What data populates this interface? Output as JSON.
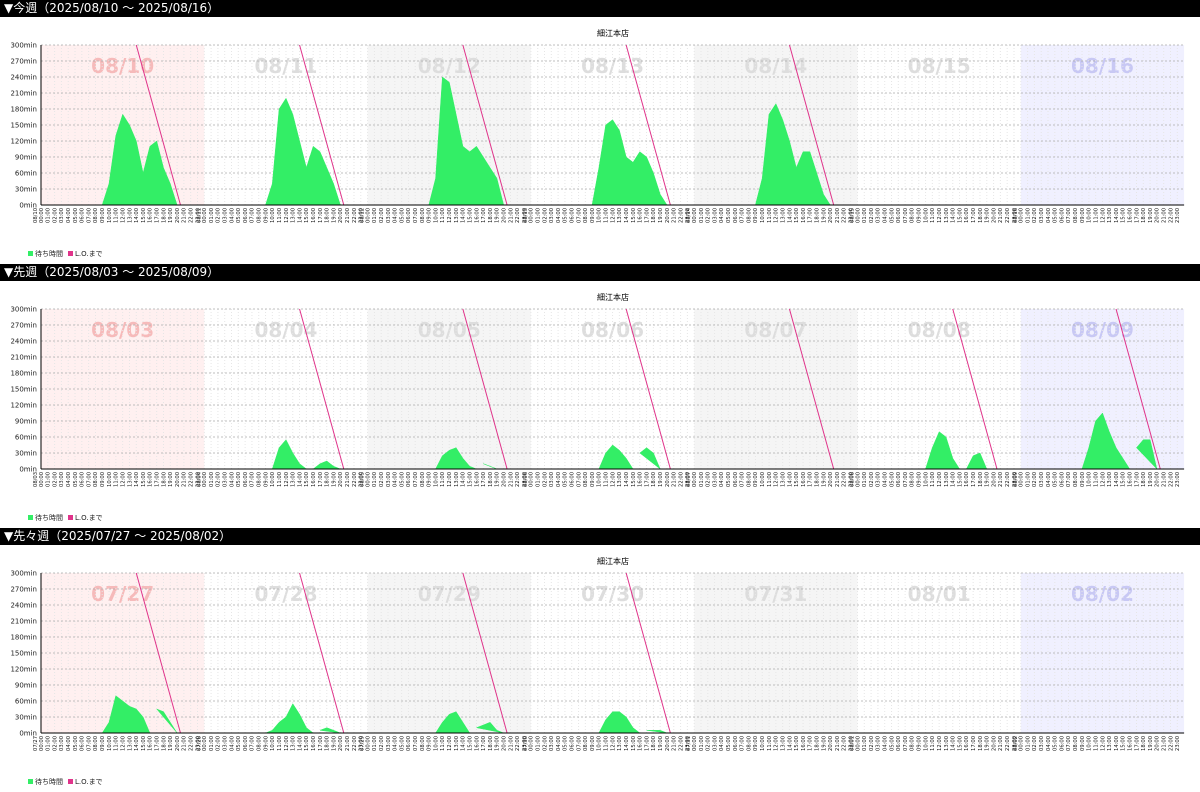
{
  "y_ticks": [
    "0min",
    "30min",
    "60min",
    "90min",
    "120min",
    "150min",
    "180min",
    "210min",
    "240min",
    "270min",
    "300min"
  ],
  "hours": [
    "00:00",
    "01:00",
    "02:00",
    "03:00",
    "04:00",
    "05:00",
    "06:00",
    "07:00",
    "08:00",
    "09:00",
    "10:00",
    "11:00",
    "12:00",
    "13:00",
    "14:00",
    "15:00",
    "16:00",
    "17:00",
    "18:00",
    "19:00",
    "20:00",
    "21:00",
    "22:00",
    "23:00"
  ],
  "legend": {
    "wait_label": "待ち時間",
    "lo_label": "L.O.まで"
  },
  "colors": {
    "wait": "#33ee66",
    "lo": "#e0338a",
    "sat_bg": "#fff0f0",
    "sun_bg": "#f0f0ff",
    "alt_bg": "#f5f5f5"
  },
  "chart_data": [
    {
      "type": "area",
      "header": "▼今週（2025/08/10 〜 2025/08/16）",
      "title": "細江本店",
      "ylim": [
        0,
        300
      ],
      "day_labels": [
        "08/10",
        "08/11",
        "08/12",
        "08/13",
        "08/14",
        "08/15",
        "08/16"
      ],
      "day_short": [
        "08/10",
        "08/11",
        "08/12",
        "08/13",
        "08/14",
        "08/15",
        "08/16"
      ],
      "series": [
        {
          "type": "area",
          "x": [
            "08/10 09:00",
            "08/10 10:00",
            "08/10 11:00",
            "08/10 12:00",
            "08/10 13:00",
            "08/10 14:00",
            "08/10 15:00",
            "08/10 16:00",
            "08/10 17:00",
            "08/10 18:00",
            "08/10 19:00",
            "08/10 20:00",
            "08/11 09:00",
            "08/11 10:00",
            "08/11 11:00",
            "08/11 12:00",
            "08/11 13:00",
            "08/11 14:00",
            "08/11 15:00",
            "08/11 16:00",
            "08/11 17:00",
            "08/11 18:00",
            "08/11 19:00",
            "08/11 20:00",
            "08/12 09:00",
            "08/12 10:00",
            "08/12 11:00",
            "08/12 12:00",
            "08/12 13:00",
            "08/12 14:00",
            "08/12 15:00",
            "08/12 16:00",
            "08/12 17:00",
            "08/12 18:00",
            "08/12 19:00",
            "08/12 20:00",
            "08/13 09:00",
            "08/13 10:00",
            "08/13 11:00",
            "08/13 12:00",
            "08/13 13:00",
            "08/13 14:00",
            "08/13 15:00",
            "08/13 16:00",
            "08/13 17:00",
            "08/13 18:00",
            "08/13 19:00",
            "08/13 20:00",
            "08/14 09:00",
            "08/14 10:00",
            "08/14 11:00",
            "08/14 12:00",
            "08/14 13:00",
            "08/14 14:00",
            "08/14 15:00",
            "08/14 16:00",
            "08/14 17:00",
            "08/14 18:00",
            "08/14 19:00",
            "08/14 20:00"
          ],
          "y": [
            0,
            40,
            130,
            170,
            150,
            120,
            60,
            110,
            120,
            70,
            40,
            0,
            0,
            40,
            180,
            200,
            170,
            120,
            70,
            110,
            100,
            70,
            40,
            0,
            0,
            50,
            240,
            230,
            170,
            110,
            100,
            110,
            90,
            70,
            50,
            0,
            0,
            70,
            150,
            160,
            140,
            90,
            80,
            100,
            90,
            60,
            20,
            0,
            0,
            50,
            170,
            190,
            160,
            120,
            70,
            100,
            100,
            60,
            20,
            0
          ]
        },
        {
          "type": "lo",
          "segments": [
            [
              "08/10 14:00",
              300,
              "08/10 20:30",
              0
            ],
            [
              "08/11 14:00",
              300,
              "08/11 20:30",
              0
            ],
            [
              "08/12 14:00",
              300,
              "08/12 20:30",
              0
            ],
            [
              "08/13 14:00",
              300,
              "08/13 20:30",
              0
            ],
            [
              "08/14 14:00",
              300,
              "08/14 20:30",
              0
            ]
          ]
        }
      ]
    },
    {
      "type": "area",
      "header": "▼先週（2025/08/03 〜 2025/08/09）",
      "title": "細江本店",
      "ylim": [
        0,
        300
      ],
      "day_labels": [
        "08/03",
        "08/04",
        "08/05",
        "08/06",
        "08/07",
        "08/08",
        "08/09"
      ],
      "day_short": [
        "08/03",
        "08/04",
        "08/05",
        "08/06",
        "08/07",
        "08/08",
        "08/09"
      ],
      "series": [
        {
          "type": "area",
          "x": [
            "08/04 10:00",
            "08/04 11:00",
            "08/04 12:00",
            "08/04 13:00",
            "08/04 14:00",
            "08/04 15:00",
            "08/04 16:00",
            "08/04 17:00",
            "08/04 18:00",
            "08/04 19:00",
            "08/04 20:00",
            "08/05 10:00",
            "08/05 11:00",
            "08/05 12:00",
            "08/05 13:00",
            "08/05 14:00",
            "08/05 15:00",
            "08/05 16:00",
            "08/05 17:00",
            "08/05 18:00",
            "08/05 19:00",
            "08/05 20:00",
            "08/06 10:00",
            "08/06 11:00",
            "08/06 12:00",
            "08/06 13:00",
            "08/06 14:00",
            "08/06 15:00",
            "08/06 16:00",
            "08/06 17:00",
            "08/06 18:00",
            "08/06 19:00",
            "08/06 20:00",
            "08/08 10:00",
            "08/08 11:00",
            "08/08 12:00",
            "08/08 13:00",
            "08/08 14:00",
            "08/08 15:00",
            "08/08 16:00",
            "08/08 17:00",
            "08/08 18:00",
            "08/08 19:00",
            "08/08 20:00",
            "08/09 09:00",
            "08/09 10:00",
            "08/09 11:00",
            "08/09 12:00",
            "08/09 13:00",
            "08/09 14:00",
            "08/09 15:00",
            "08/09 16:00",
            "08/09 17:00",
            "08/09 18:00",
            "08/09 19:00",
            "08/09 20:00"
          ],
          "y": [
            0,
            40,
            55,
            30,
            10,
            0,
            0,
            10,
            15,
            5,
            0,
            0,
            25,
            35,
            40,
            20,
            5,
            0,
            10,
            5,
            0,
            0,
            0,
            30,
            45,
            35,
            20,
            0,
            30,
            40,
            30,
            0,
            0,
            0,
            40,
            70,
            60,
            20,
            0,
            0,
            25,
            30,
            0,
            0,
            0,
            40,
            90,
            105,
            70,
            40,
            20,
            0,
            40,
            55,
            55,
            0
          ]
        },
        {
          "type": "lo",
          "segments": [
            [
              "08/04 14:00",
              300,
              "08/04 20:30",
              0
            ],
            [
              "08/05 14:00",
              300,
              "08/05 20:30",
              0
            ],
            [
              "08/06 14:00",
              300,
              "08/06 20:30",
              0
            ],
            [
              "08/07 14:00",
              300,
              "08/07 20:30",
              0
            ],
            [
              "08/08 14:00",
              300,
              "08/08 20:30",
              0
            ],
            [
              "08/09 14:00",
              300,
              "08/09 20:30",
              0
            ]
          ]
        }
      ]
    },
    {
      "type": "area",
      "header": "▼先々週（2025/07/27 〜 2025/08/02）",
      "title": "細江本店",
      "ylim": [
        0,
        300
      ],
      "day_labels": [
        "07/27",
        "07/28",
        "07/29",
        "07/30",
        "07/31",
        "08/01",
        "08/02"
      ],
      "day_short": [
        "07/27",
        "07/28",
        "07/29",
        "07/30",
        "07/31",
        "08/01",
        "08/02"
      ],
      "series": [
        {
          "type": "area",
          "x": [
            "07/27 09:00",
            "07/27 10:00",
            "07/27 11:00",
            "07/27 12:00",
            "07/27 13:00",
            "07/27 14:00",
            "07/27 15:00",
            "07/27 16:00",
            "07/27 17:00",
            "07/27 18:00",
            "07/27 19:00",
            "07/27 20:00",
            "07/28 09:00",
            "07/28 10:00",
            "07/28 11:00",
            "07/28 12:00",
            "07/28 13:00",
            "07/28 14:00",
            "07/28 15:00",
            "07/28 16:00",
            "07/28 17:00",
            "07/28 18:00",
            "07/28 19:00",
            "07/28 20:00",
            "07/29 10:00",
            "07/29 11:00",
            "07/29 12:00",
            "07/29 13:00",
            "07/29 14:00",
            "07/29 15:00",
            "07/29 16:00",
            "07/29 17:00",
            "07/29 18:00",
            "07/29 19:00",
            "07/29 20:00",
            "07/30 10:00",
            "07/30 11:00",
            "07/30 12:00",
            "07/30 13:00",
            "07/30 14:00",
            "07/30 15:00",
            "07/30 16:00",
            "07/30 17:00",
            "07/30 18:00",
            "07/30 19:00",
            "07/30 20:00"
          ],
          "y": [
            0,
            20,
            70,
            60,
            50,
            45,
            30,
            0,
            45,
            40,
            20,
            0,
            0,
            5,
            20,
            30,
            55,
            35,
            10,
            0,
            5,
            10,
            5,
            0,
            0,
            20,
            35,
            40,
            20,
            0,
            10,
            15,
            20,
            5,
            0,
            0,
            25,
            40,
            40,
            30,
            10,
            0,
            5,
            5,
            5,
            0
          ]
        },
        {
          "type": "lo",
          "segments": [
            [
              "07/27 14:00",
              300,
              "07/27 20:30",
              0
            ],
            [
              "07/28 14:00",
              300,
              "07/28 20:30",
              0
            ],
            [
              "07/29 14:00",
              300,
              "07/29 20:30",
              0
            ],
            [
              "07/30 14:00",
              300,
              "07/30 20:30",
              0
            ]
          ]
        }
      ]
    }
  ]
}
